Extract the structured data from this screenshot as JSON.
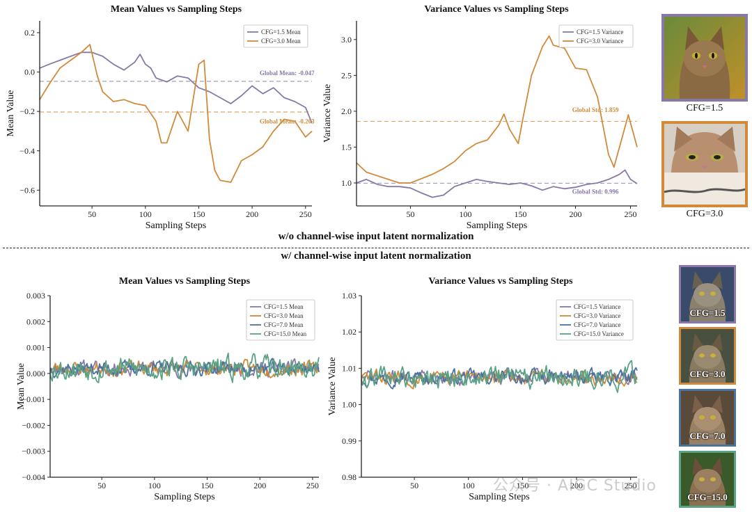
{
  "section_labels": {
    "top": "w/o channel-wise input latent normalization",
    "bottom": "w/ channel-wise input latent normalization"
  },
  "watermark": "公众号 · AIGC Studio",
  "colors": {
    "cfg1_5": "#8878a8",
    "cfg3_0": "#d08a3a",
    "cfg7_0": "#4a72a0",
    "cfg15_0": "#5aa284",
    "axis": "#222222"
  },
  "images": {
    "top": [
      {
        "caption": "CFG=1.5",
        "border_color": "#8878a8"
      },
      {
        "caption": "CFG=3.0",
        "border_color": "#d08a3a"
      }
    ],
    "bottom": [
      {
        "caption": "CFG=1.5",
        "border_color": "#8878a8"
      },
      {
        "caption": "CFG=3.0",
        "border_color": "#d08a3a"
      },
      {
        "caption": "CFG=7.0",
        "border_color": "#4a72a0"
      },
      {
        "caption": "CFG=15.0",
        "border_color": "#5aa284"
      }
    ]
  },
  "chart_data": [
    {
      "id": "top-mean",
      "type": "line",
      "title": "Mean Values vs Sampling Steps",
      "xlabel": "Sampling Steps",
      "ylabel": "Mean Value",
      "xlim": [
        1,
        256
      ],
      "ylim": [
        -0.68,
        0.26
      ],
      "xticks": [
        50,
        100,
        150,
        200,
        250
      ],
      "yticks": [
        0.2,
        0.0,
        -0.2,
        -0.4,
        -0.6
      ],
      "ytick_labels": [
        "0.2",
        "0.0",
        "−0.2",
        "−0.4",
        "−0.6"
      ],
      "legend_position": "top-right",
      "series": [
        {
          "name": "CFG=1.5 Mean",
          "color_key": "cfg1_5",
          "x": [
            1,
            10,
            20,
            30,
            40,
            50,
            60,
            70,
            80,
            90,
            95,
            100,
            105,
            110,
            120,
            130,
            140,
            150,
            160,
            170,
            180,
            190,
            200,
            210,
            220,
            230,
            240,
            250,
            256
          ],
          "y": [
            0.02,
            0.04,
            0.06,
            0.08,
            0.1,
            0.1,
            0.08,
            0.04,
            0.01,
            0.05,
            0.09,
            0.04,
            0.02,
            -0.03,
            -0.05,
            -0.02,
            -0.03,
            -0.08,
            -0.1,
            -0.13,
            -0.16,
            -0.12,
            -0.07,
            -0.11,
            -0.08,
            -0.13,
            -0.15,
            -0.18,
            -0.26
          ]
        },
        {
          "name": "CFG=3.0 Mean",
          "color_key": "cfg3_0",
          "x": [
            1,
            10,
            20,
            30,
            40,
            48,
            55,
            60,
            70,
            80,
            90,
            100,
            110,
            115,
            120,
            130,
            140,
            150,
            155,
            160,
            165,
            170,
            180,
            190,
            200,
            210,
            220,
            230,
            240,
            250,
            256
          ],
          "y": [
            -0.14,
            -0.06,
            0.02,
            0.06,
            0.1,
            0.14,
            -0.02,
            -0.1,
            -0.15,
            -0.14,
            -0.16,
            -0.17,
            -0.25,
            -0.36,
            -0.36,
            -0.2,
            -0.3,
            0.04,
            0.06,
            -0.34,
            -0.5,
            -0.55,
            -0.56,
            -0.45,
            -0.42,
            -0.38,
            -0.3,
            -0.24,
            -0.25,
            -0.33,
            -0.3
          ]
        }
      ],
      "reference_lines": [
        {
          "y": -0.047,
          "color_key": "cfg1_5",
          "label": "Global Mean: -0.047",
          "label_x": 207,
          "label_y": -0.015
        },
        {
          "y": -0.203,
          "color_key": "cfg3_0",
          "label": "Global Mean: -0.203",
          "label_x": 207,
          "label_y": -0.262
        }
      ]
    },
    {
      "id": "top-var",
      "type": "line",
      "title": "Variance Values vs Sampling Steps",
      "xlabel": "Sampling Steps",
      "ylabel": "Variance Value",
      "xlim": [
        1,
        256
      ],
      "ylim": [
        0.68,
        3.26
      ],
      "xticks": [
        50,
        100,
        150,
        200,
        250
      ],
      "yticks": [
        1.0,
        1.5,
        2.0,
        2.5,
        3.0
      ],
      "ytick_labels": [
        "1.0",
        "1.5",
        "2.0",
        "2.5",
        "3.0"
      ],
      "legend_position": "top-right",
      "series": [
        {
          "name": "CFG=1.5 Variance",
          "color_key": "cfg1_5",
          "x": [
            1,
            10,
            20,
            30,
            40,
            50,
            60,
            70,
            80,
            90,
            100,
            110,
            120,
            130,
            140,
            150,
            160,
            170,
            180,
            190,
            200,
            210,
            220,
            230,
            240,
            245,
            250,
            256
          ],
          "y": [
            1.0,
            1.05,
            0.98,
            0.95,
            0.95,
            0.93,
            0.86,
            0.8,
            0.83,
            0.95,
            1.0,
            1.05,
            1.02,
            1.0,
            0.98,
            1.0,
            0.96,
            0.9,
            0.95,
            0.92,
            0.94,
            0.98,
            1.0,
            1.05,
            1.12,
            1.18,
            1.05,
            0.99
          ]
        },
        {
          "name": "CFG=3.0 Variance",
          "color_key": "cfg3_0",
          "x": [
            1,
            10,
            20,
            30,
            40,
            50,
            60,
            70,
            80,
            90,
            100,
            110,
            120,
            130,
            135,
            140,
            148,
            152,
            160,
            170,
            176,
            180,
            190,
            200,
            210,
            220,
            230,
            235,
            240,
            248,
            256
          ],
          "y": [
            1.28,
            1.15,
            1.1,
            1.05,
            1.0,
            1.0,
            1.06,
            1.12,
            1.2,
            1.3,
            1.45,
            1.55,
            1.6,
            1.8,
            1.96,
            1.75,
            1.55,
            1.88,
            2.5,
            2.9,
            3.05,
            2.92,
            2.88,
            2.6,
            2.58,
            2.2,
            1.4,
            1.22,
            1.5,
            1.95,
            1.5
          ]
        }
      ],
      "reference_lines": [
        {
          "y": 1.859,
          "color_key": "cfg3_0",
          "label": "Global Std: 1.859",
          "label_x": 197,
          "label_y": 1.99
        },
        {
          "y": 0.996,
          "color_key": "cfg1_5",
          "label": "Global Std: 0.996",
          "label_x": 197,
          "label_y": 0.85
        }
      ]
    },
    {
      "id": "bottom-mean",
      "type": "line",
      "title": "Mean Values vs Sampling Steps",
      "xlabel": "Sampling Steps",
      "ylabel": "Mean Value",
      "xlim": [
        1,
        256
      ],
      "ylim": [
        -0.004,
        0.003
      ],
      "xticks": [
        50,
        100,
        150,
        200,
        250
      ],
      "yticks": [
        0.003,
        0.002,
        0.001,
        0.0,
        -0.001,
        -0.002,
        -0.003,
        -0.004
      ],
      "ytick_labels": [
        "0.003",
        "0.002",
        "0.001",
        "0.000",
        "−0.001",
        "−0.002",
        "−0.003",
        "−0.004"
      ],
      "legend_position": "top-right",
      "noise": {
        "type": "fluctuating",
        "center": 0.0002,
        "amplitude": 0.0004,
        "points": 256
      },
      "series": [
        {
          "name": "CFG=1.5 Mean",
          "color_key": "cfg1_5",
          "seed": 11
        },
        {
          "name": "CFG=3.0 Mean",
          "color_key": "cfg3_0",
          "seed": 23
        },
        {
          "name": "CFG=7.0 Mean",
          "color_key": "cfg7_0",
          "seed": 37
        },
        {
          "name": "CFG=15.0 Mean",
          "color_key": "cfg15_0",
          "seed": 53,
          "amplitude_scale": 1.6
        }
      ]
    },
    {
      "id": "bottom-var",
      "type": "line",
      "title": "Variance Values vs Sampling Steps",
      "xlabel": "Sampling Steps",
      "ylabel": "Variance Value",
      "xlim": [
        1,
        256
      ],
      "ylim": [
        0.98,
        1.03
      ],
      "xticks": [
        50,
        100,
        150,
        200,
        250
      ],
      "yticks": [
        1.03,
        1.02,
        1.01,
        1.0,
        0.99,
        0.98
      ],
      "ytick_labels": [
        "1.03",
        "1.02",
        "1.01",
        "1.00",
        "0.99",
        "0.98"
      ],
      "legend_position": "top-right",
      "noise": {
        "type": "fluctuating",
        "center": 1.0075,
        "amplitude": 0.0028,
        "points": 256
      },
      "series": [
        {
          "name": "CFG=1.5 Variance",
          "color_key": "cfg1_5",
          "seed": 71
        },
        {
          "name": "CFG=3.0 Variance",
          "color_key": "cfg3_0",
          "seed": 83
        },
        {
          "name": "CFG=7.0 Variance",
          "color_key": "cfg7_0",
          "seed": 97
        },
        {
          "name": "CFG=15.0 Variance",
          "color_key": "cfg15_0",
          "seed": 109,
          "amplitude_scale": 1.5
        }
      ]
    }
  ]
}
